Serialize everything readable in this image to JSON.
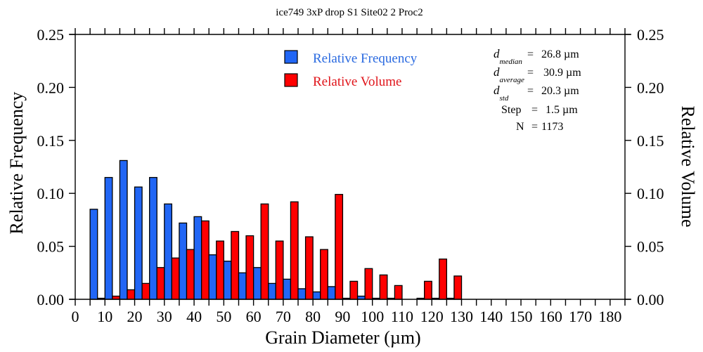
{
  "chart_data": {
    "type": "bar",
    "title": "ice749 3xP drop S1 Site02 2 Proc2",
    "xlabel": "Grain Diameter (µm)",
    "ylabel_left": "Relative Frequency",
    "ylabel_right": "Relative Volume",
    "xlim": [
      0,
      185
    ],
    "ylim_left": [
      0,
      0.25
    ],
    "ylim_right": [
      0,
      0.25
    ],
    "x_ticks": [
      0,
      10,
      20,
      30,
      40,
      50,
      60,
      70,
      80,
      90,
      100,
      110,
      120,
      130,
      140,
      150,
      160,
      170,
      180
    ],
    "x_tick_labels": [
      "0",
      "10",
      "20",
      "30",
      "40",
      "50",
      "60",
      "70",
      "80",
      "90",
      "100",
      "110",
      "120",
      "130",
      "140",
      "150",
      "160",
      "170",
      "180"
    ],
    "x_minor_step": 5,
    "y_ticks": [
      0,
      0.05,
      0.1,
      0.15,
      0.2,
      0.25
    ],
    "y_tick_labels": [
      "0.00",
      "0.05",
      "0.10",
      "0.15",
      "0.20",
      "0.25"
    ],
    "bin_width": 5,
    "bin_starts": [
      5,
      10,
      15,
      20,
      25,
      30,
      35,
      40,
      45,
      50,
      55,
      60,
      65,
      70,
      75,
      80,
      85,
      90,
      95,
      100,
      105,
      110,
      115,
      120,
      125
    ],
    "series": [
      {
        "name": "Relative Frequency",
        "axis": "left",
        "color": "#2166f5",
        "values": [
          0.085,
          0.115,
          0.131,
          0.106,
          0.115,
          0.09,
          0.072,
          0.078,
          0.042,
          0.036,
          0.025,
          0.03,
          0.015,
          0.019,
          0.01,
          0.007,
          0.012,
          0.001,
          0.003,
          0.001,
          0.001,
          0.0,
          0.001,
          0.001,
          0.001
        ]
      },
      {
        "name": "Relative Volume",
        "axis": "right",
        "color": "#ff0000",
        "values": [
          0.001,
          0.003,
          0.009,
          0.015,
          0.03,
          0.039,
          0.047,
          0.074,
          0.055,
          0.064,
          0.06,
          0.09,
          0.055,
          0.092,
          0.059,
          0.047,
          0.099,
          0.017,
          0.029,
          0.023,
          0.013,
          0.0,
          0.017,
          0.038,
          0.022
        ]
      }
    ],
    "legend": {
      "position": "top-center",
      "entries": [
        {
          "label": "Relative Frequency",
          "color": "#2166f5",
          "text_color": "#2a6ae0"
        },
        {
          "label": "Relative Volume",
          "color": "#ff0000",
          "text_color": "#e0141a"
        }
      ]
    },
    "annotations": {
      "position": "top-right",
      "stats": [
        {
          "symbol": "d",
          "subscript": "median",
          "value": "26.8 µm"
        },
        {
          "symbol": "d",
          "subscript": "average",
          "value": "30.9 µm"
        },
        {
          "symbol": "d",
          "subscript": "std",
          "value": "20.3 µm"
        },
        {
          "symbol": "Step",
          "subscript": "",
          "value": "1.5 µm"
        },
        {
          "symbol": "N",
          "subscript": "",
          "value": "1173"
        }
      ]
    },
    "grid": false
  }
}
